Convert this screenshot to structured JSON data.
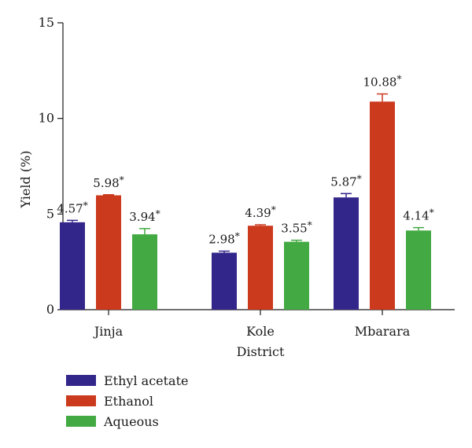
{
  "chart_data": {
    "type": "bar",
    "xlabel": "District",
    "ylabel": "Yield (%)",
    "ylim": [
      0,
      15
    ],
    "yticks": [
      0,
      5,
      10,
      15
    ],
    "categories": [
      "Jinja",
      "Kole",
      "Mbarara"
    ],
    "legend_position": "bottom-left",
    "grid": false,
    "series": [
      {
        "name": "Ethyl acetate",
        "color": "#33268a",
        "values": [
          4.57,
          2.98,
          5.87
        ],
        "errors": [
          0.1,
          0.08,
          0.2
        ],
        "labels": [
          "4.57*",
          "2.98*",
          "5.87*"
        ]
      },
      {
        "name": "Ethanol",
        "color": "#cc3a1e",
        "values": [
          5.98,
          4.39,
          10.88
        ],
        "errors": [
          0.03,
          0.05,
          0.4
        ],
        "labels": [
          "5.98*",
          "4.39*",
          "10.88*"
        ]
      },
      {
        "name": "Aqueous",
        "color": "#43a943",
        "values": [
          3.94,
          3.55,
          4.14
        ],
        "errors": [
          0.3,
          0.08,
          0.15
        ],
        "labels": [
          "3.94*",
          "3.55*",
          "4.14*"
        ]
      }
    ]
  }
}
